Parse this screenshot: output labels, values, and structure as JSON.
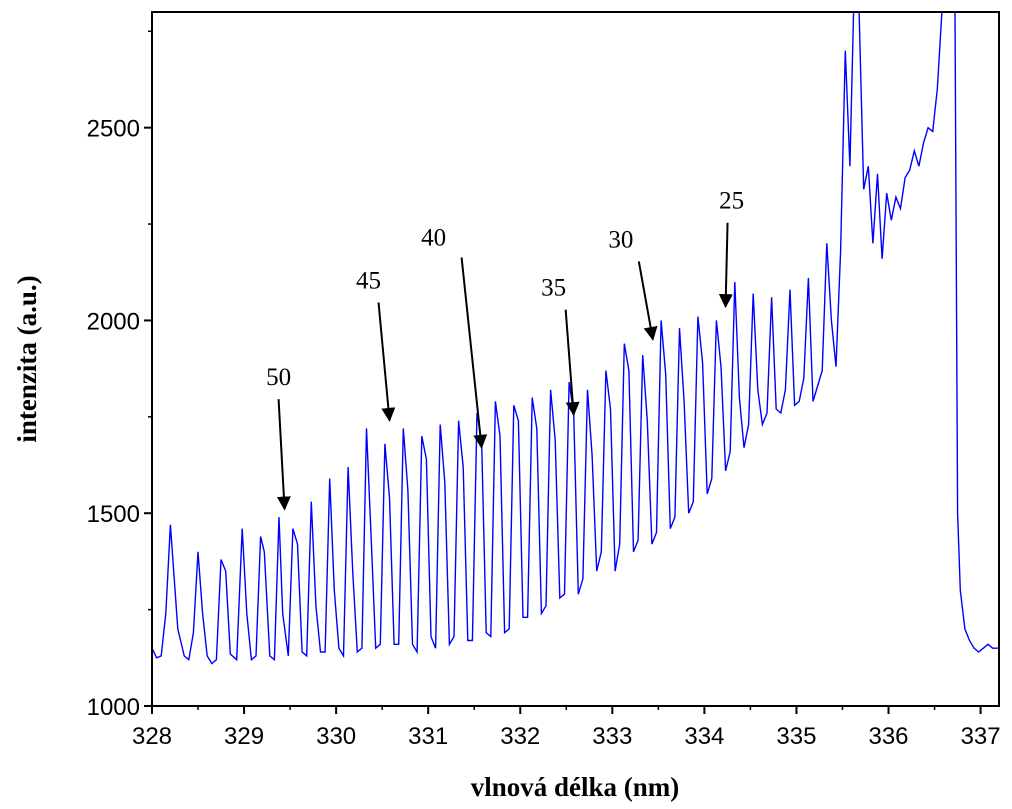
{
  "chart_data": {
    "type": "line",
    "title": "",
    "xlabel": "vlnová délka (nm)",
    "ylabel": "intenzita (a.u.)",
    "xlim": [
      328,
      337.2
    ],
    "ylim": [
      1000,
      2800
    ],
    "x_ticks": [
      328,
      329,
      330,
      331,
      332,
      333,
      334,
      335,
      336,
      337
    ],
    "y_ticks": [
      1000,
      1500,
      2000,
      2500
    ],
    "grid": false,
    "legend": "none",
    "line_color": "#0000ff",
    "series": [
      {
        "x": [
          328.0,
          328.05,
          328.1,
          328.15,
          328.2,
          328.28,
          328.35,
          328.4,
          328.45,
          328.5,
          328.55,
          328.6,
          328.65,
          328.7,
          328.75,
          328.8,
          328.85,
          328.92,
          328.98,
          329.03,
          329.08,
          329.13,
          329.18,
          329.22,
          329.28,
          329.33,
          329.38,
          329.42,
          329.48,
          329.53,
          329.58,
          329.63,
          329.68,
          329.73,
          329.78,
          329.83,
          329.88,
          329.93,
          329.98,
          330.03,
          330.08,
          330.13,
          330.18,
          330.23,
          330.28,
          330.33,
          330.38,
          330.43,
          330.48,
          330.53,
          330.58,
          330.63,
          330.68,
          330.73,
          330.78,
          330.83,
          330.88,
          330.93,
          330.98,
          331.03,
          331.08,
          331.13,
          331.18,
          331.23,
          331.28,
          331.33,
          331.38,
          331.43,
          331.48,
          331.53,
          331.58,
          331.63,
          331.68,
          331.73,
          331.78,
          331.83,
          331.88,
          331.93,
          331.98,
          332.03,
          332.08,
          332.13,
          332.18,
          332.23,
          332.28,
          332.33,
          332.38,
          332.43,
          332.48,
          332.53,
          332.58,
          332.63,
          332.68,
          332.73,
          332.78,
          332.83,
          332.88,
          332.93,
          332.98,
          333.03,
          333.08,
          333.13,
          333.18,
          333.23,
          333.28,
          333.33,
          333.38,
          333.43,
          333.48,
          333.53,
          333.58,
          333.63,
          333.68,
          333.73,
          333.78,
          333.83,
          333.88,
          333.93,
          333.98,
          334.03,
          334.08,
          334.13,
          334.18,
          334.23,
          334.28,
          334.33,
          334.38,
          334.43,
          334.48,
          334.53,
          334.58,
          334.63,
          334.68,
          334.73,
          334.78,
          334.83,
          334.88,
          334.93,
          334.98,
          335.03,
          335.08,
          335.13,
          335.18,
          335.23,
          335.28,
          335.33,
          335.38,
          335.43,
          335.48,
          335.53,
          335.58,
          335.63,
          335.68,
          335.73,
          335.78,
          335.83,
          335.88,
          335.93,
          335.98,
          336.03,
          336.08,
          336.13,
          336.18,
          336.23,
          336.28,
          336.33,
          336.38,
          336.43,
          336.48,
          336.53,
          336.58,
          336.63,
          336.68,
          336.72,
          336.75,
          336.78,
          336.83,
          336.88,
          336.93,
          336.98,
          337.03,
          337.08,
          337.13,
          337.2
        ],
        "y": [
          1150,
          1125,
          1130,
          1240,
          1470,
          1200,
          1130,
          1120,
          1190,
          1400,
          1240,
          1130,
          1110,
          1120,
          1380,
          1350,
          1135,
          1120,
          1460,
          1240,
          1120,
          1130,
          1440,
          1400,
          1130,
          1120,
          1490,
          1240,
          1130,
          1460,
          1420,
          1140,
          1130,
          1530,
          1260,
          1140,
          1140,
          1590,
          1300,
          1150,
          1130,
          1620,
          1350,
          1140,
          1150,
          1720,
          1440,
          1150,
          1160,
          1680,
          1540,
          1160,
          1160,
          1720,
          1560,
          1160,
          1140,
          1700,
          1640,
          1180,
          1150,
          1730,
          1580,
          1160,
          1180,
          1740,
          1620,
          1170,
          1170,
          1760,
          1690,
          1190,
          1180,
          1790,
          1700,
          1190,
          1200,
          1780,
          1740,
          1230,
          1230,
          1800,
          1720,
          1240,
          1260,
          1820,
          1690,
          1280,
          1290,
          1840,
          1760,
          1290,
          1330,
          1820,
          1650,
          1350,
          1400,
          1870,
          1770,
          1350,
          1420,
          1940,
          1870,
          1400,
          1430,
          1910,
          1740,
          1420,
          1450,
          2000,
          1860,
          1460,
          1490,
          1980,
          1790,
          1500,
          1530,
          2010,
          1890,
          1550,
          1590,
          2000,
          1880,
          1610,
          1660,
          2100,
          1800,
          1670,
          1730,
          2070,
          1820,
          1730,
          1760,
          2060,
          1770,
          1760,
          1820,
          2080,
          1780,
          1790,
          1850,
          2110,
          1790,
          1830,
          1870,
          2200,
          2000,
          1880,
          2180,
          2700,
          2400,
          2900,
          2800,
          2340,
          2400,
          2200,
          2380,
          2160,
          2330,
          2260,
          2320,
          2290,
          2370,
          2390,
          2440,
          2400,
          2460,
          2500,
          2490,
          2600,
          2800,
          2900,
          2900,
          2900,
          1500,
          1300,
          1200,
          1170,
          1150,
          1140,
          1150,
          1160,
          1150,
          1150
        ]
      }
    ],
    "annotations": [
      {
        "text": "50",
        "x": 329.44,
        "y": 1495
      },
      {
        "text": "45",
        "x": 330.58,
        "y": 1725
      },
      {
        "text": "40",
        "x": 331.58,
        "y": 1655
      },
      {
        "text": "35",
        "x": 332.58,
        "y": 1740
      },
      {
        "text": "30",
        "x": 333.44,
        "y": 1935
      },
      {
        "text": "25",
        "x": 334.23,
        "y": 2020
      }
    ]
  }
}
